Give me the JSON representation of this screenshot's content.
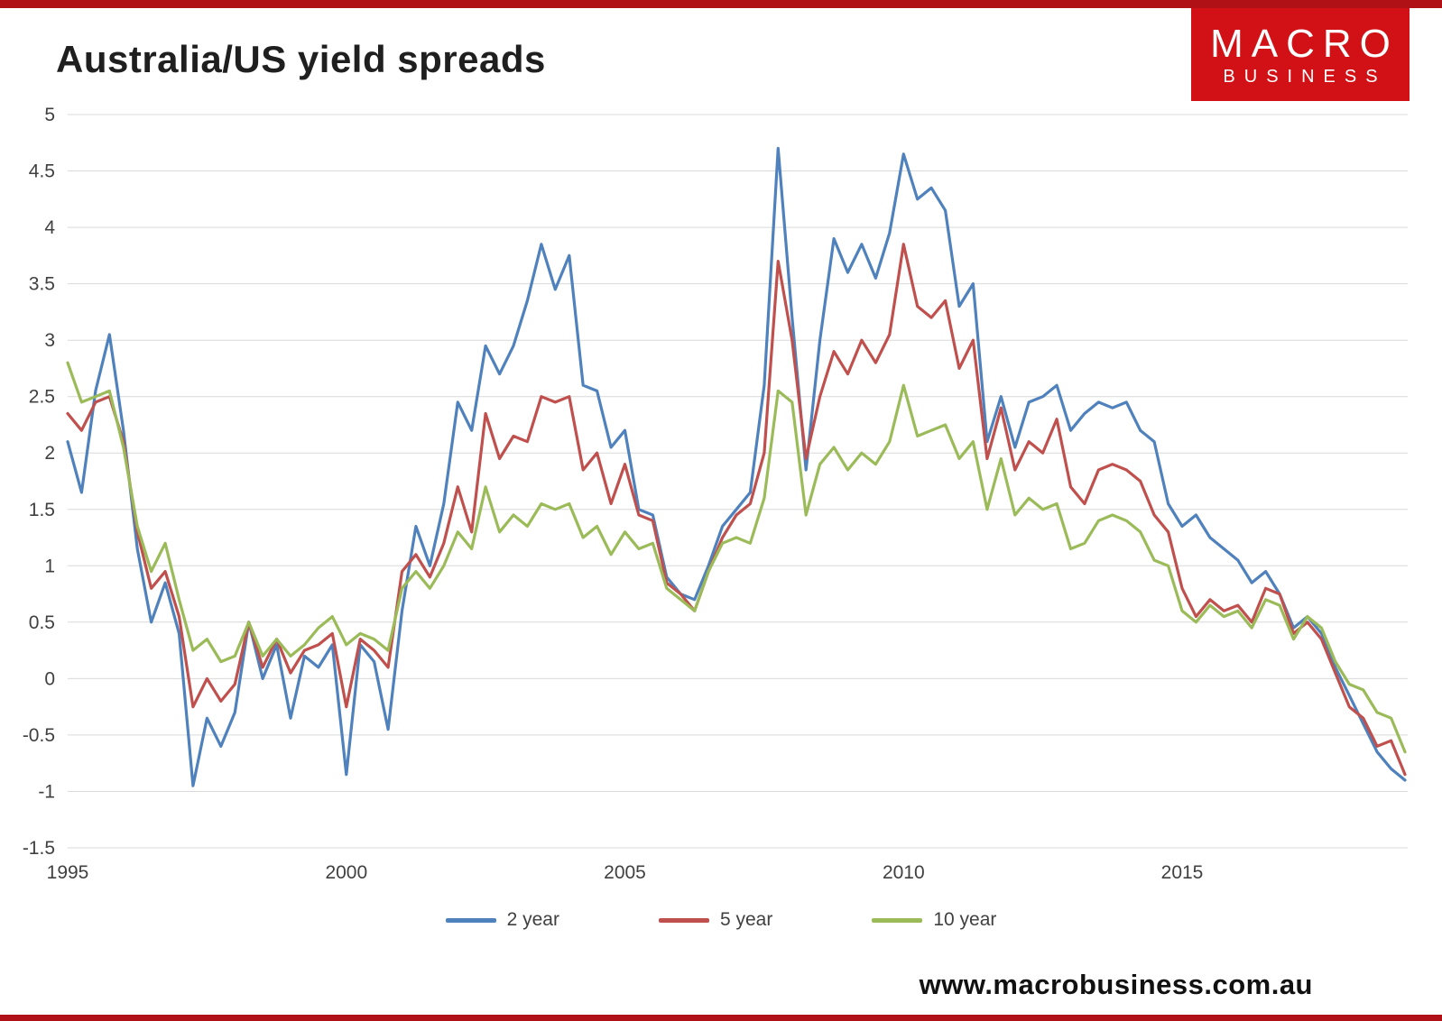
{
  "header": {
    "title": "Australia/US yield spreads"
  },
  "logo": {
    "line1": "MACRO",
    "line2": "BUSINESS"
  },
  "footer": {
    "url": "www.macrobusiness.com.au"
  },
  "colors": {
    "accent_red": "#b01116",
    "logo_red": "#d11116",
    "grid": "#d9d9d9",
    "axis_text": "#404040",
    "series_blue": "#4F81BD",
    "series_red": "#C0504D",
    "series_green": "#9BBB59"
  },
  "chart_data": {
    "type": "line",
    "title": "Australia/US yield spreads",
    "xlabel": "",
    "ylabel": "",
    "xlim": [
      1995,
      2019
    ],
    "ylim": [
      -1.5,
      5
    ],
    "grid": true,
    "legend_position": "bottom",
    "x_ticks": [
      1995,
      2000,
      2005,
      2010,
      2015
    ],
    "y_ticks": [
      5,
      4.5,
      4,
      3.5,
      3,
      2.5,
      2,
      1.5,
      1,
      0.5,
      0,
      -0.5,
      -1,
      -1.5
    ],
    "x_start": 1995,
    "x_step": 0.25,
    "series": [
      {
        "name": "2 year",
        "color": "#4F81BD",
        "values": [
          2.1,
          1.65,
          2.55,
          3.05,
          2.2,
          1.15,
          0.5,
          0.85,
          0.4,
          -0.95,
          -0.35,
          -0.6,
          -0.3,
          0.5,
          0,
          0.3,
          -0.35,
          0.2,
          0.1,
          0.3,
          -0.85,
          0.3,
          0.15,
          -0.45,
          0.6,
          1.35,
          1.0,
          1.55,
          2.45,
          2.2,
          2.95,
          2.7,
          2.95,
          3.35,
          3.85,
          3.45,
          3.75,
          2.6,
          2.55,
          2.05,
          2.2,
          1.5,
          1.45,
          0.9,
          0.75,
          0.7,
          1.0,
          1.35,
          1.5,
          1.65,
          2.6,
          4.7,
          3.2,
          1.85,
          3.0,
          3.9,
          3.6,
          3.85,
          3.55,
          3.95,
          4.65,
          4.25,
          4.35,
          4.15,
          3.3,
          3.5,
          2.1,
          2.5,
          2.05,
          2.45,
          2.5,
          2.6,
          2.2,
          2.35,
          2.45,
          2.4,
          2.45,
          2.2,
          2.1,
          1.55,
          1.35,
          1.45,
          1.25,
          1.15,
          1.05,
          0.85,
          0.95,
          0.75,
          0.45,
          0.55,
          0.4,
          0.1,
          -0.15,
          -0.4,
          -0.65,
          -0.8,
          -0.9
        ]
      },
      {
        "name": "5 year",
        "color": "#C0504D",
        "values": [
          2.35,
          2.2,
          2.45,
          2.5,
          2.1,
          1.3,
          0.8,
          0.95,
          0.55,
          -0.25,
          0,
          -0.2,
          -0.05,
          0.5,
          0.1,
          0.35,
          0.05,
          0.25,
          0.3,
          0.4,
          -0.25,
          0.35,
          0.25,
          0.1,
          0.95,
          1.1,
          0.9,
          1.2,
          1.7,
          1.3,
          2.35,
          1.95,
          2.15,
          2.1,
          2.5,
          2.45,
          2.5,
          1.85,
          2.0,
          1.55,
          1.9,
          1.45,
          1.4,
          0.85,
          0.75,
          0.6,
          0.95,
          1.25,
          1.45,
          1.55,
          2.0,
          3.7,
          3.0,
          1.95,
          2.5,
          2.9,
          2.7,
          3.0,
          2.8,
          3.05,
          3.85,
          3.3,
          3.2,
          3.35,
          2.75,
          3.0,
          1.95,
          2.4,
          1.85,
          2.1,
          2.0,
          2.3,
          1.7,
          1.55,
          1.85,
          1.9,
          1.85,
          1.75,
          1.45,
          1.3,
          0.8,
          0.55,
          0.7,
          0.6,
          0.65,
          0.5,
          0.8,
          0.75,
          0.4,
          0.5,
          0.35,
          0.05,
          -0.25,
          -0.35,
          -0.6,
          -0.55,
          -0.85
        ]
      },
      {
        "name": "10 year",
        "color": "#9BBB59",
        "values": [
          2.8,
          2.45,
          2.5,
          2.55,
          2.05,
          1.35,
          0.95,
          1.2,
          0.7,
          0.25,
          0.35,
          0.15,
          0.2,
          0.5,
          0.2,
          0.35,
          0.2,
          0.3,
          0.45,
          0.55,
          0.3,
          0.4,
          0.35,
          0.25,
          0.8,
          0.95,
          0.8,
          1.0,
          1.3,
          1.15,
          1.7,
          1.3,
          1.45,
          1.35,
          1.55,
          1.5,
          1.55,
          1.25,
          1.35,
          1.1,
          1.3,
          1.15,
          1.2,
          0.8,
          0.7,
          0.6,
          0.95,
          1.2,
          1.25,
          1.2,
          1.6,
          2.55,
          2.45,
          1.45,
          1.9,
          2.05,
          1.85,
          2.0,
          1.9,
          2.1,
          2.6,
          2.15,
          2.2,
          2.25,
          1.95,
          2.1,
          1.5,
          1.95,
          1.45,
          1.6,
          1.5,
          1.55,
          1.15,
          1.2,
          1.4,
          1.45,
          1.4,
          1.3,
          1.05,
          1.0,
          0.6,
          0.5,
          0.65,
          0.55,
          0.6,
          0.45,
          0.7,
          0.65,
          0.35,
          0.55,
          0.45,
          0.15,
          -0.05,
          -0.1,
          -0.3,
          -0.35,
          -0.65
        ]
      }
    ]
  }
}
